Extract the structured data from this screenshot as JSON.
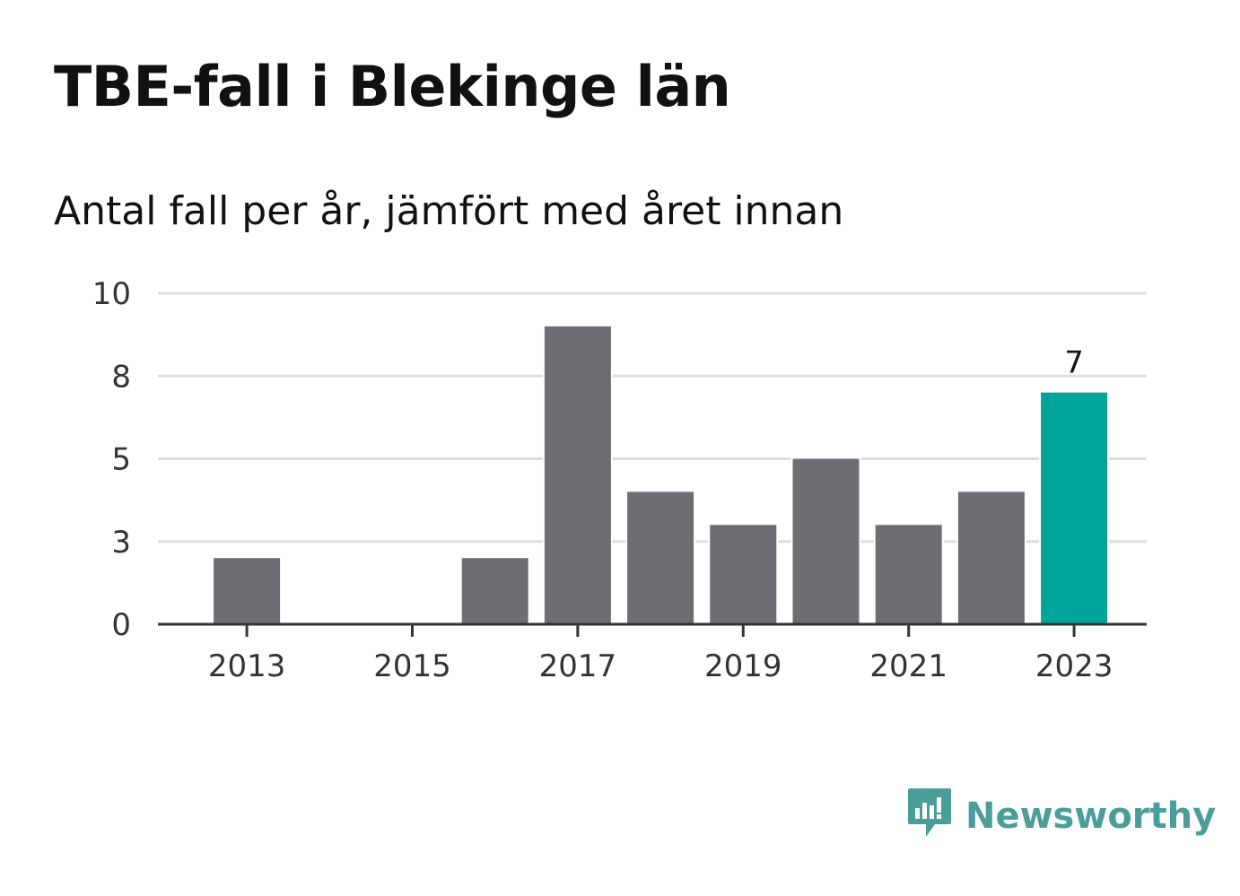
{
  "title": "TBE-fall i Blekinge län",
  "subtitle": "Antal fall per år, jämfört med året innan",
  "brand": {
    "name": "Newsworthy",
    "color": "#4a9e9a",
    "icon": "newsworthy-logo-icon"
  },
  "colors": {
    "bar": "#6e6d73",
    "highlight": "#00a59a",
    "grid": "#dddddd",
    "axis": "#333333"
  },
  "chart_data": {
    "type": "bar",
    "categories": [
      "2013",
      "2014",
      "2015",
      "2016",
      "2017",
      "2018",
      "2019",
      "2020",
      "2021",
      "2022",
      "2023"
    ],
    "values": [
      2,
      0,
      0,
      2,
      9,
      4,
      3,
      5,
      3,
      4,
      7
    ],
    "highlight_index": 10,
    "data_labels": [
      {
        "index": 10,
        "text": "7"
      }
    ],
    "x_tick_labels": [
      "2013",
      "2015",
      "2017",
      "2019",
      "2021",
      "2023"
    ],
    "y_tick_labels": [
      "0",
      "3",
      "5",
      "8",
      "10"
    ],
    "ylim": [
      0,
      10
    ],
    "grid": true,
    "legend": "none",
    "xlabel": "",
    "ylabel": ""
  }
}
